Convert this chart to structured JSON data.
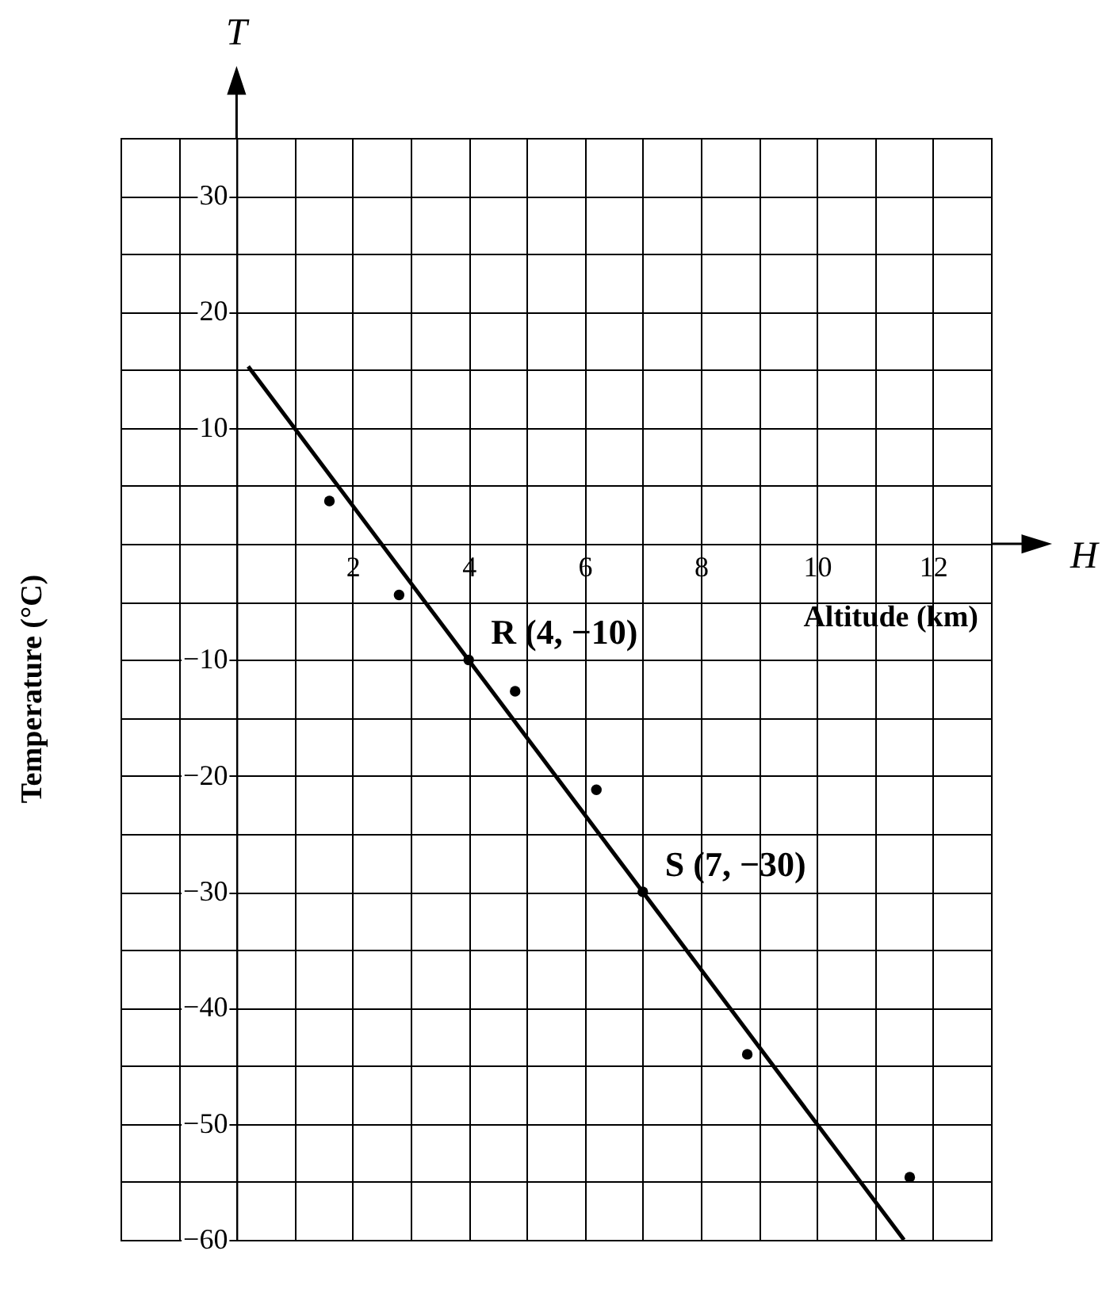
{
  "chart_data": {
    "type": "scatter",
    "xlabel": "Altitude (km)",
    "ylabel": "Temperature (°C)",
    "xlim": [
      -2,
      13
    ],
    "ylim": [
      -60,
      35
    ],
    "xticks": [
      {
        "value": -2,
        "label": null
      },
      {
        "value": -1,
        "label": null
      },
      {
        "value": 0,
        "label": null
      },
      {
        "value": 1,
        "label": null
      },
      2,
      {
        "value": 3,
        "label": null
      },
      4,
      {
        "value": 5,
        "label": null
      },
      6,
      {
        "value": 7,
        "label": null
      },
      8,
      {
        "value": 9,
        "label": null
      },
      10,
      {
        "value": 11,
        "label": null
      },
      12,
      {
        "value": 13,
        "label": null
      }
    ],
    "yticks": [
      {
        "value": 35,
        "label": null
      },
      30,
      {
        "value": 25,
        "label": null
      },
      20,
      {
        "value": 15,
        "label": null
      },
      10,
      {
        "value": 5,
        "label": null
      },
      {
        "value": 0,
        "label": null
      },
      {
        "value": -5,
        "label": null
      },
      -10,
      {
        "value": -15,
        "label": null
      },
      -20,
      {
        "value": -25,
        "label": null
      },
      -30,
      {
        "value": -35,
        "label": null
      },
      -40,
      {
        "value": -45,
        "label": null
      },
      -50,
      {
        "value": -55,
        "label": null
      },
      -60
    ],
    "grid": true,
    "marker": "circle",
    "line_style": "solid",
    "series": [
      {
        "type": "line",
        "x": [
          0.2,
          11.5
        ],
        "values": [
          15.3,
          -60
        ],
        "color": "#000000",
        "marker": "none"
      },
      {
        "type": "scatter",
        "x": [
          1.6,
          2.8,
          4,
          4.8,
          6.2,
          7,
          8.8,
          11.6
        ],
        "values": [
          3.7,
          -4.4,
          -10,
          -12.7,
          -21.2,
          -30,
          -44,
          -54.6
        ],
        "color": "#000000"
      }
    ],
    "annotations": [
      {
        "text": "R (4, −10)",
        "x": 4,
        "y": -10
      },
      {
        "text": "S (7, −30)",
        "x": 7,
        "y": -30
      },
      "T",
      "H"
    ]
  }
}
